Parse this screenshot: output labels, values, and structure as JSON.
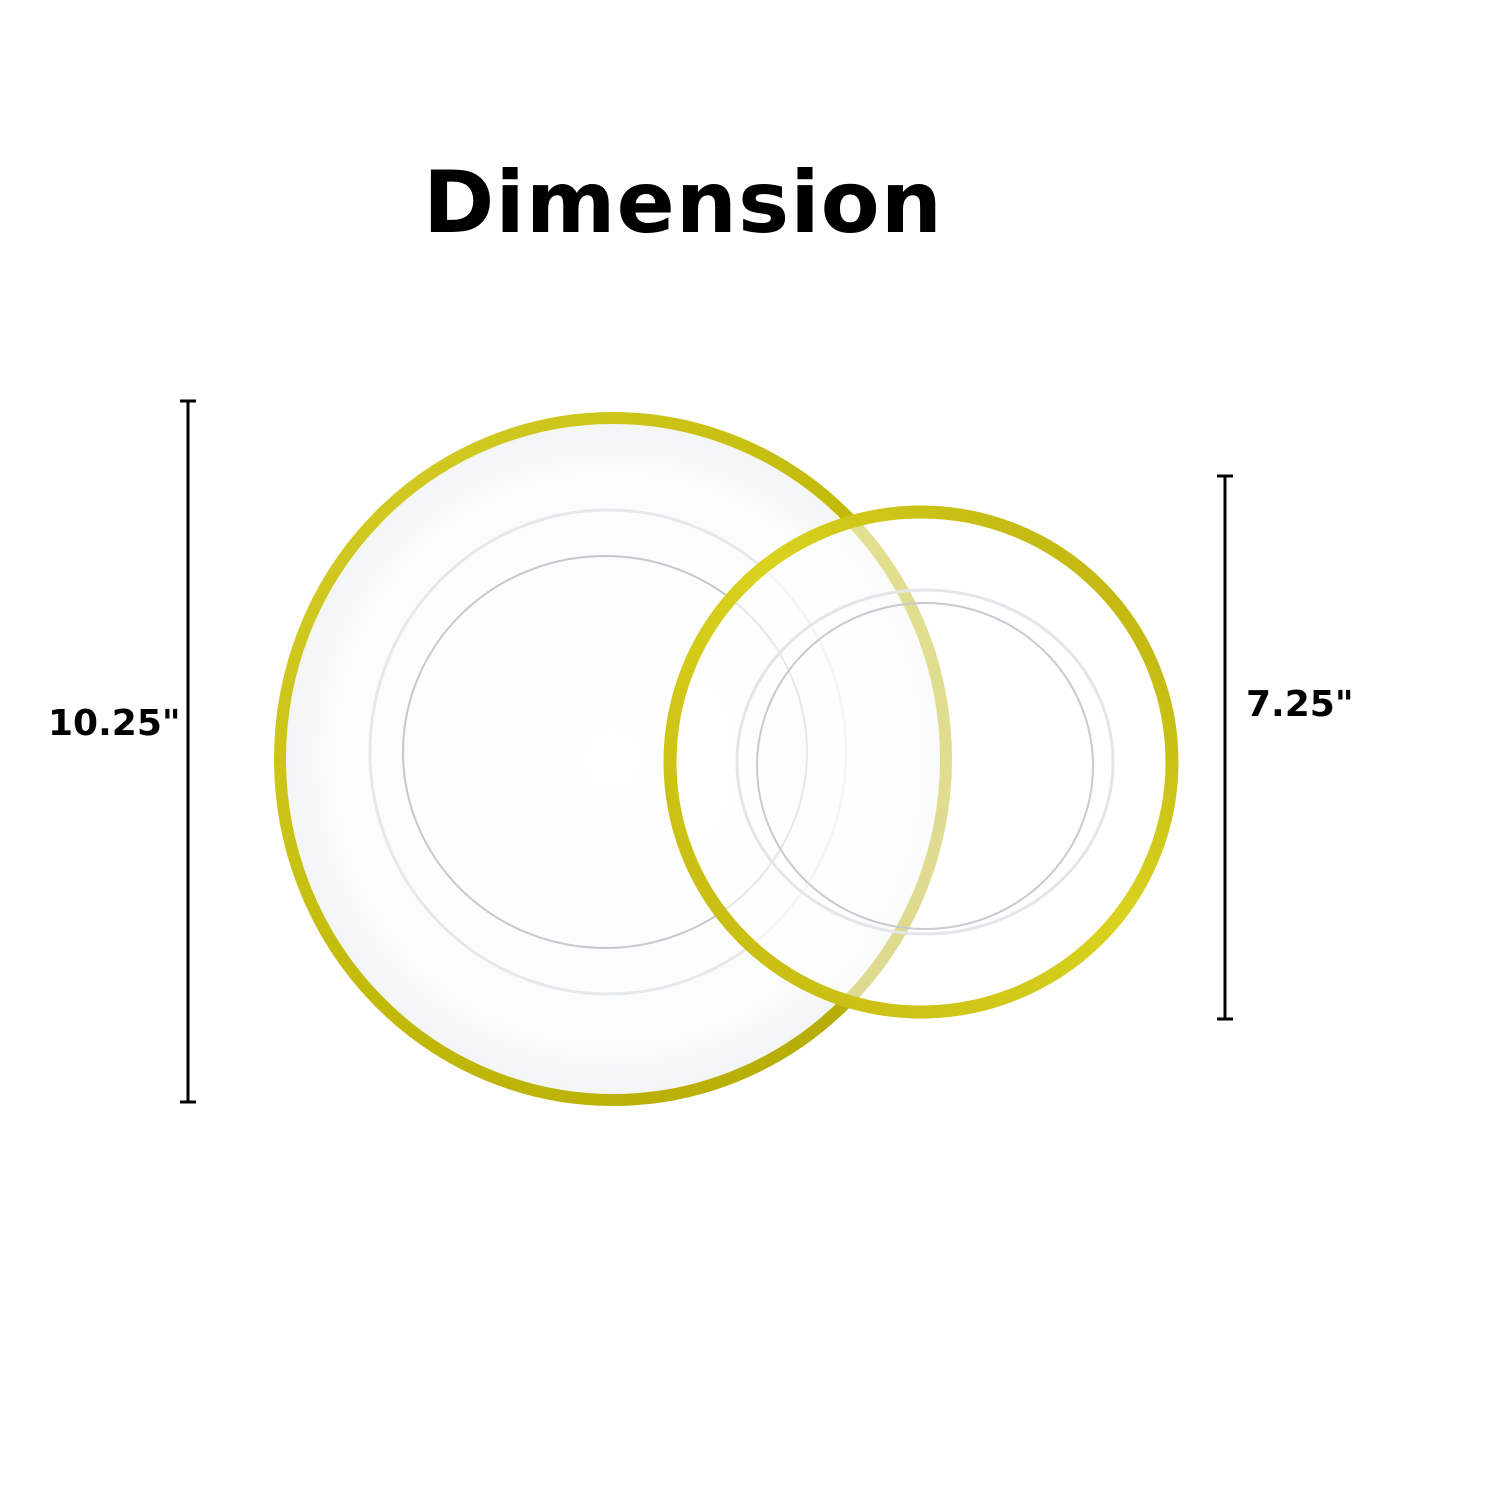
{
  "title": "Dimension",
  "dimensions": {
    "large_plate": "10.25\"",
    "small_plate": "7.25\""
  },
  "colors": {
    "rim_gold": "#c9c20e",
    "rim_gold_light": "#e0d84a",
    "glass_line": "#c8ccd0",
    "dimension_line": "#000000"
  }
}
